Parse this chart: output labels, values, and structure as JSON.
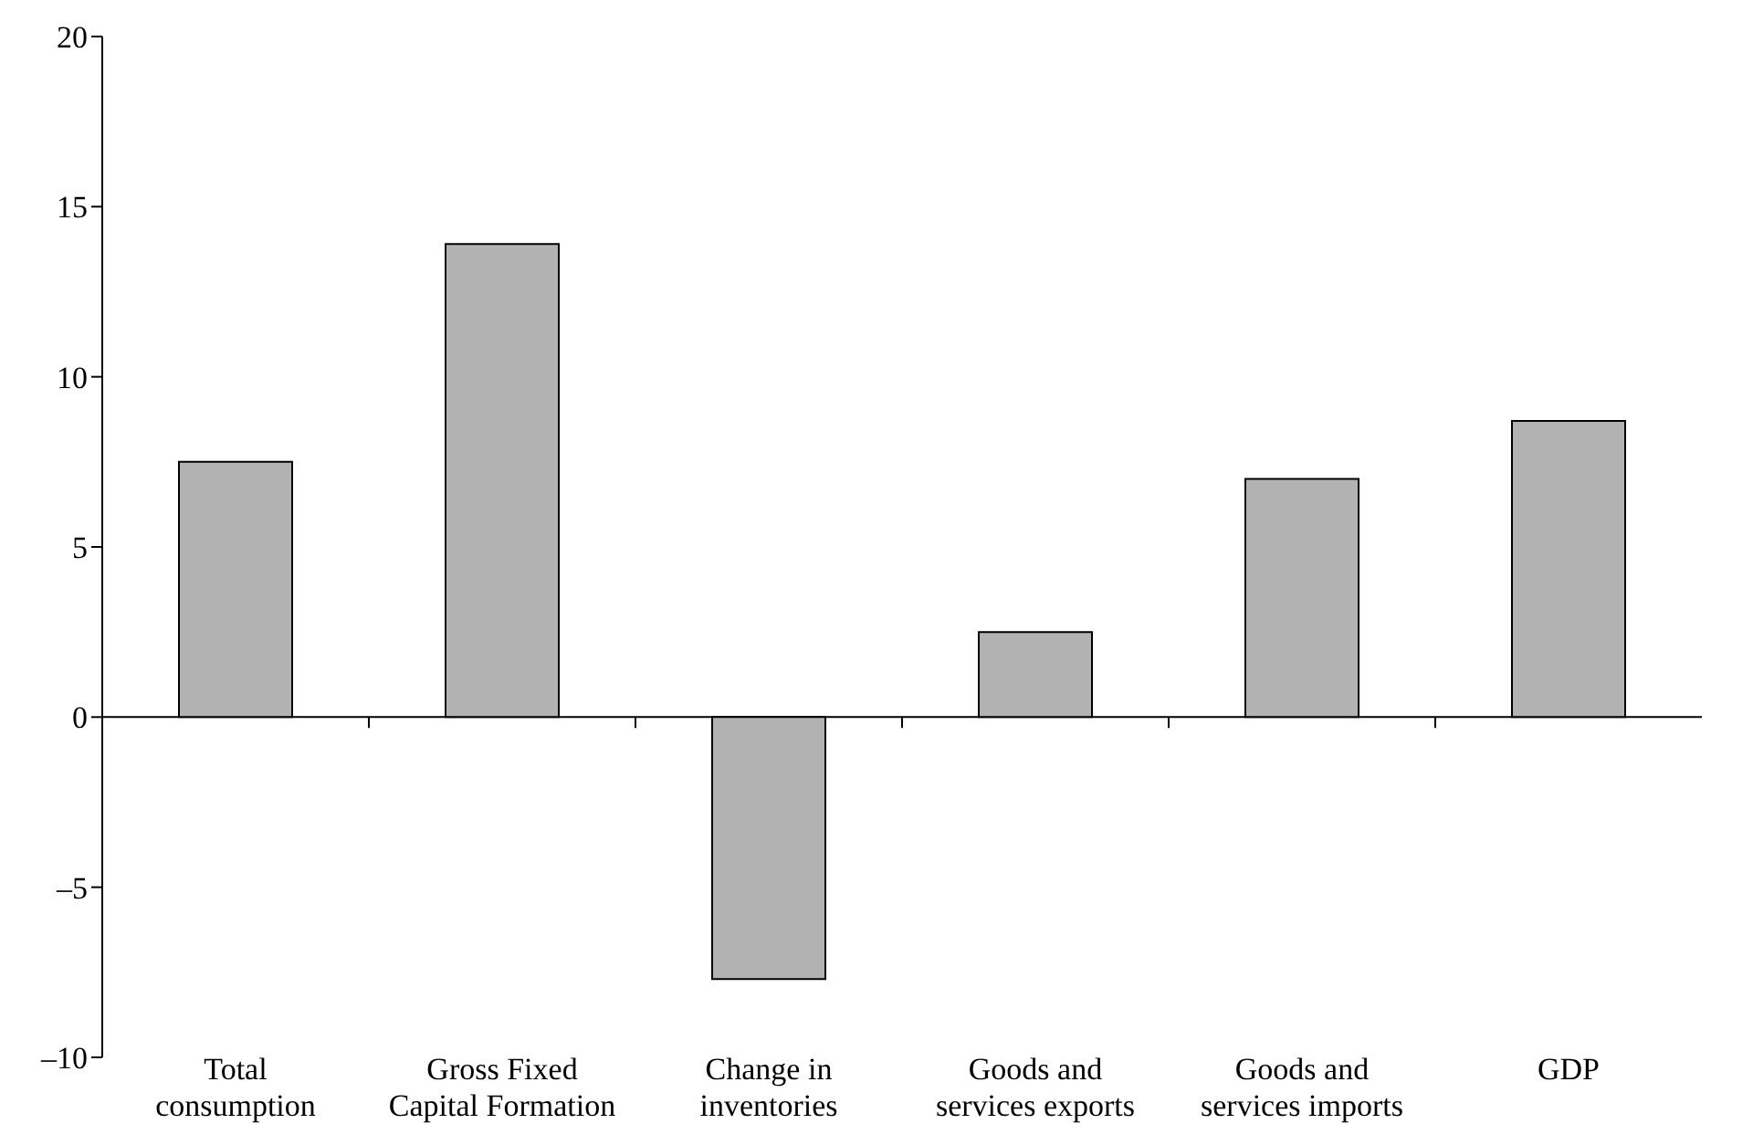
{
  "chart_data": {
    "type": "bar",
    "categories": [
      "Total consumption",
      "Gross Fixed Capital Formation",
      "Change in inventories",
      "Goods and services exports",
      "Goods and services imports",
      "GDP"
    ],
    "values": [
      7.5,
      13.9,
      -7.7,
      2.5,
      7.0,
      8.7
    ],
    "color": "#b2b2b2",
    "ylim": [
      -10,
      20
    ],
    "yticks": [
      {
        "value": -10,
        "label": "–10"
      },
      {
        "value": -5,
        "label": "–5"
      },
      0,
      5,
      10,
      15,
      20
    ],
    "ref_lines": [
      {
        "axis": "y",
        "value": 0,
        "color": "#000000",
        "line_style": "solid"
      }
    ],
    "grid": false,
    "legend": false
  }
}
